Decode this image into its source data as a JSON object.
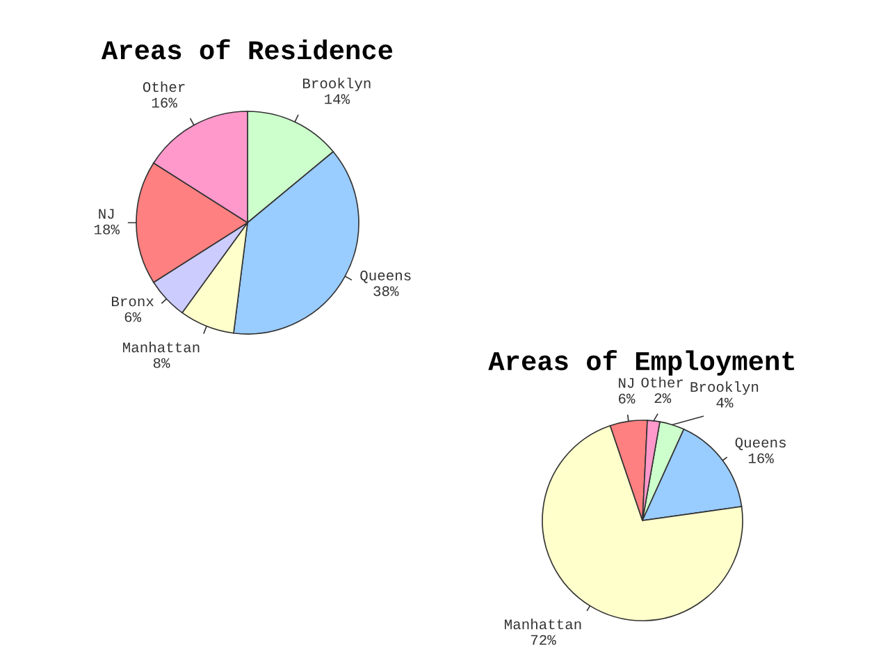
{
  "chart_data": [
    {
      "type": "pie",
      "title": "Areas of Residence",
      "categories": [
        "Brooklyn",
        "Queens",
        "Manhattan",
        "Bronx",
        "NJ",
        "Other"
      ],
      "values": [
        14,
        38,
        8,
        6,
        18,
        16
      ],
      "colors": [
        "#ccffcc",
        "#99ccff",
        "#ffffcc",
        "#ccccff",
        "#ff8080",
        "#ff99cc"
      ],
      "value_labels": [
        "14%",
        "38%",
        "8%",
        "6%",
        "18%",
        "16%"
      ]
    },
    {
      "type": "pie",
      "title": "Areas of Employment",
      "categories": [
        "Brooklyn",
        "Queens",
        "Manhattan",
        "NJ",
        "Other"
      ],
      "values": [
        4,
        16,
        72,
        6,
        2
      ],
      "colors": [
        "#ccffcc",
        "#99ccff",
        "#ffffcc",
        "#ff8080",
        "#ff99cc"
      ],
      "value_labels": [
        "4%",
        "16%",
        "72%",
        "6%",
        "2%"
      ]
    }
  ]
}
